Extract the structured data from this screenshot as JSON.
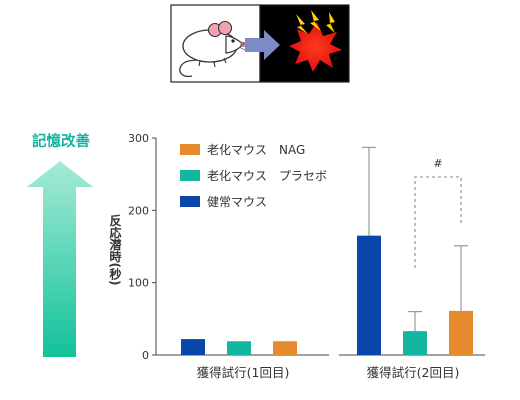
{
  "memory_label": "記憶改善",
  "illustration": {
    "left_panel": "mouse",
    "right_panel": "electric-shock",
    "arrow_color": "#7c8bc6"
  },
  "chart_data": {
    "type": "bar",
    "title": "",
    "xlabel": "",
    "ylabel": "反応潜時(秒)",
    "ylim": [
      0,
      300
    ],
    "yticks": [
      0,
      100,
      200,
      300
    ],
    "categories": [
      "獲得試行(1回目)",
      "獲得試行(2回目)"
    ],
    "series": [
      {
        "name": "老化マウス　NAG",
        "color": "#e68a2e",
        "values": [
          19,
          61
        ],
        "err": [
          null,
          90
        ]
      },
      {
        "name": "老化マウス　プラセボ",
        "color": "#15b6a0",
        "values": [
          19,
          33
        ],
        "err": [
          null,
          27
        ]
      },
      {
        "name": "健常マウス",
        "color": "#0a47a8",
        "values": [
          22,
          165
        ],
        "err": [
          null,
          122
        ]
      }
    ],
    "bar_order": [
      "健常マウス",
      "老化マウス　プラセボ",
      "老化マウス　NAG"
    ],
    "legend_position": "top-left",
    "grid": false,
    "annotations": [
      {
        "text": "#",
        "between": [
          "老化マウス　プラセボ",
          "老化マウス　NAG"
        ],
        "category": "獲得試行(2回目)"
      }
    ]
  }
}
